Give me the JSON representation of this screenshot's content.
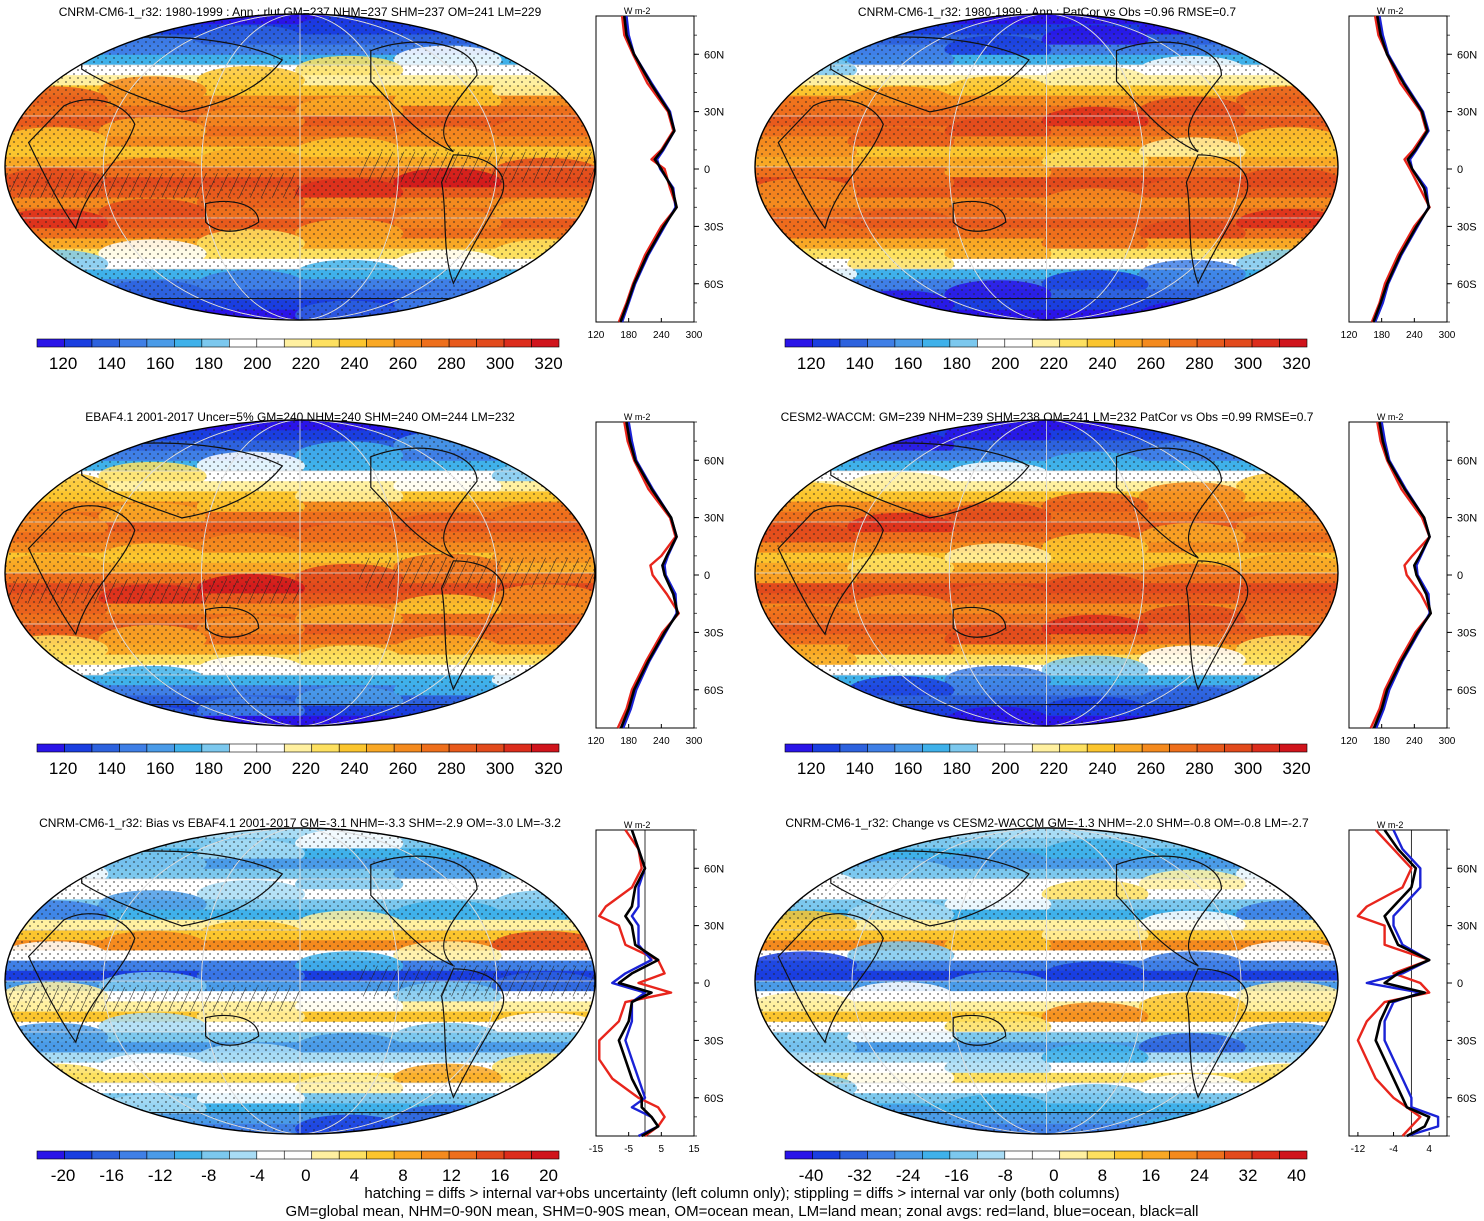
{
  "panels": [
    {
      "title": "CNRM-CM6-1_r32: 1980-1999 : Ann : rlut GM=237 NHM=237 SHM=237 OM=241 LM=229",
      "style": "abs",
      "hatched": true,
      "colorbar_labels": [
        "120",
        "140",
        "160",
        "180",
        "200",
        "220",
        "240",
        "260",
        "280",
        "300",
        "320"
      ],
      "profile_xticks": [
        "120",
        "180",
        "240",
        "300"
      ]
    },
    {
      "title": "CNRM-CM6-1_r32: 1980-1999 : Ann : PatCor vs Obs =0.96 RMSE=0.7",
      "style": "abs",
      "hatched": false,
      "colorbar_labels": [
        "120",
        "140",
        "160",
        "180",
        "200",
        "220",
        "240",
        "260",
        "280",
        "300",
        "320"
      ],
      "profile_xticks": [
        "120",
        "180",
        "240",
        "300"
      ]
    },
    {
      "title": "EBAF4.1 2001-2017 Uncer=5% GM=240 NHM=240 SHM=240 OM=244 LM=232",
      "style": "abs",
      "hatched": true,
      "colorbar_labels": [
        "120",
        "140",
        "160",
        "180",
        "200",
        "220",
        "240",
        "260",
        "280",
        "300",
        "320"
      ],
      "profile_xticks": [
        "120",
        "180",
        "240",
        "300"
      ]
    },
    {
      "title": "CESM2-WACCM: GM=239 NHM=239 SHM=238 OM=241 LM=232 PatCor vs Obs =0.99 RMSE=0.7",
      "style": "abs",
      "hatched": false,
      "colorbar_labels": [
        "120",
        "140",
        "160",
        "180",
        "200",
        "220",
        "240",
        "260",
        "280",
        "300",
        "320"
      ],
      "profile_xticks": [
        "120",
        "180",
        "240",
        "300"
      ]
    },
    {
      "title": "CNRM-CM6-1_r32: Bias vs EBAF4.1 2001-2017 GM=-3.1 NHM=-3.3 SHM=-2.9 OM=-3.0 LM=-3.2",
      "style": "diff",
      "hatched": true,
      "colorbar_labels": [
        "-20",
        "-16",
        "-12",
        "-8",
        "-4",
        "0",
        "4",
        "8",
        "12",
        "16",
        "20"
      ],
      "profile_xticks": [
        "-15",
        "-5",
        "5",
        "15"
      ]
    },
    {
      "title": "CNRM-CM6-1_r32: Change vs CESM2-WACCM GM=-1.3 NHM=-2.0 SHM=-0.8 OM=-0.8 LM=-2.7",
      "style": "diff",
      "hatched": false,
      "colorbar_labels": [
        "-40",
        "-32",
        "-24",
        "-16",
        "-8",
        "0",
        "8",
        "16",
        "24",
        "32",
        "40"
      ],
      "profile_xticks": [
        "-12",
        "-4",
        "4"
      ]
    }
  ],
  "profile_units": "W m-2",
  "lat_ticks": [
    "60N",
    "30N",
    "0",
    "30S",
    "60S"
  ],
  "colors": {
    "land": "#e8251c",
    "ocean": "#1a22d6",
    "all": "#000000",
    "abs_scale": [
      "#2a14e8",
      "#1a3ee0",
      "#2d62de",
      "#3f7fe6",
      "#4a9be8",
      "#3fb1ea",
      "#7cc8ee",
      "#ffffff",
      "#ffffff",
      "#fff0a0",
      "#fde060",
      "#fbc52e",
      "#f9a825",
      "#f48a1e",
      "#ee6f1c",
      "#e85a1c",
      "#e24a1c",
      "#dc2d1c",
      "#d0141c"
    ],
    "diff_scale": [
      "#2a14e8",
      "#1a3ee0",
      "#2d62de",
      "#3f7fe6",
      "#4a9be8",
      "#3fb1ea",
      "#7cc8ee",
      "#a8dcf5",
      "#ffffff",
      "#ffffff",
      "#fff0a0",
      "#fde060",
      "#fbc52e",
      "#f9a825",
      "#f48a1e",
      "#ee6f1c",
      "#e24a1c",
      "#dc2d1c",
      "#d0141c"
    ]
  },
  "chart_data": [
    {
      "type": "heatmap",
      "title": "CNRM-CM6-1_r32: 1980-1999 : Ann : rlut GM=237 NHM=237 SHM=237 OM=241 LM=229",
      "colorbar_range": [
        120,
        320
      ],
      "zonal_profile": {
        "lat": [
          80,
          70,
          60,
          45,
          30,
          20,
          10,
          5,
          0,
          -10,
          -20,
          -30,
          -45,
          -60,
          -70,
          -80
        ],
        "land": [
          168,
          172,
          188,
          214,
          252,
          262,
          240,
          222,
          246,
          256,
          268,
          240,
          210,
          188,
          176,
          162
        ],
        "ocean": [
          176,
          180,
          190,
          222,
          256,
          264,
          244,
          232,
          238,
          262,
          266,
          246,
          216,
          192,
          180,
          168
        ],
        "all": [
          172,
          176,
          190,
          220,
          254,
          264,
          242,
          228,
          240,
          260,
          268,
          244,
          214,
          190,
          178,
          165
        ]
      }
    },
    {
      "type": "heatmap",
      "title": "CNRM-CM6-1_r32: 1980-1999 : Ann : PatCor vs Obs =0.96 RMSE=0.7",
      "colorbar_range": [
        120,
        320
      ],
      "zonal_profile": {
        "lat": [
          80,
          70,
          60,
          45,
          30,
          20,
          10,
          5,
          0,
          -10,
          -20,
          -30,
          -45,
          -60,
          -70,
          -80
        ],
        "land": [
          168,
          174,
          190,
          214,
          252,
          262,
          238,
          222,
          232,
          250,
          268,
          240,
          210,
          186,
          176,
          162
        ],
        "ocean": [
          176,
          182,
          192,
          222,
          256,
          266,
          244,
          232,
          236,
          262,
          266,
          246,
          216,
          192,
          182,
          168
        ],
        "all": [
          172,
          178,
          190,
          220,
          254,
          264,
          242,
          228,
          236,
          258,
          267,
          244,
          214,
          190,
          178,
          165
        ]
      }
    },
    {
      "type": "heatmap",
      "title": "EBAF4.1 2001-2017 Uncer=5% GM=240 NHM=240 SHM=240 OM=244 LM=232",
      "colorbar_range": [
        120,
        320
      ],
      "zonal_profile": {
        "lat": [
          80,
          70,
          60,
          45,
          30,
          20,
          10,
          5,
          0,
          -10,
          -20,
          -30,
          -45,
          -60,
          -70,
          -80
        ],
        "land": [
          172,
          178,
          190,
          216,
          256,
          266,
          240,
          220,
          224,
          250,
          272,
          242,
          212,
          186,
          176,
          160
        ],
        "ocean": [
          180,
          186,
          194,
          224,
          258,
          268,
          252,
          246,
          248,
          266,
          268,
          248,
          218,
          194,
          184,
          170
        ],
        "all": [
          176,
          182,
          192,
          222,
          258,
          268,
          250,
          242,
          246,
          262,
          270,
          246,
          216,
          190,
          180,
          166
        ]
      }
    },
    {
      "type": "heatmap",
      "title": "CESM2-WACCM: GM=239 NHM=239 SHM=238 OM=241 LM=232 PatCor vs Obs =0.99 RMSE=0.7",
      "colorbar_range": [
        120,
        320
      ],
      "zonal_profile": {
        "lat": [
          80,
          70,
          60,
          45,
          30,
          20,
          10,
          5,
          0,
          -10,
          -20,
          -30,
          -45,
          -60,
          -70,
          -80
        ],
        "land": [
          172,
          178,
          190,
          216,
          254,
          268,
          236,
          222,
          226,
          252,
          270,
          242,
          212,
          186,
          176,
          160
        ],
        "ocean": [
          180,
          186,
          194,
          224,
          258,
          268,
          252,
          244,
          246,
          266,
          268,
          248,
          218,
          194,
          184,
          170
        ],
        "all": [
          176,
          182,
          192,
          222,
          258,
          268,
          250,
          240,
          244,
          262,
          270,
          246,
          216,
          190,
          180,
          166
        ]
      }
    },
    {
      "type": "heatmap",
      "title": "CNRM-CM6-1_r32: Bias vs EBAF4.1 2001-2017 GM=-3.1 NHM=-3.3 SHM=-2.9 OM=-3.0 LM=-3.2",
      "colorbar_range": [
        -20,
        20
      ],
      "zonal_profile": {
        "lat": [
          80,
          70,
          60,
          50,
          40,
          35,
          30,
          20,
          12,
          5,
          0,
          -5,
          -10,
          -20,
          -30,
          -40,
          -50,
          -60,
          -65,
          -70,
          -75,
          -80
        ],
        "land": [
          -6,
          -2,
          -1,
          -4,
          -12,
          -14,
          -8,
          -6,
          4,
          6,
          -2,
          8,
          -6,
          -8,
          -14,
          -14,
          -10,
          -2,
          4,
          6,
          4,
          0
        ],
        "ocean": [
          -4,
          -2,
          0,
          -2,
          -2,
          -4,
          -2,
          -2,
          2,
          -6,
          -10,
          0,
          -4,
          -4,
          -6,
          -4,
          -2,
          0,
          -4,
          2,
          4,
          -2
        ],
        "all": [
          -4,
          -2,
          0,
          -3,
          -4,
          -6,
          -4,
          -3,
          4,
          -4,
          -8,
          2,
          -4,
          -5,
          -8,
          -6,
          -4,
          -1,
          -1,
          2,
          4,
          -1
        ]
      }
    },
    {
      "type": "heatmap",
      "title": "CNRM-CM6-1_r32: Change vs CESM2-WACCM GM=-1.3 NHM=-2.0 SHM=-0.8 OM=-0.8 LM=-2.7",
      "colorbar_range": [
        -40,
        40
      ],
      "zonal_profile": {
        "lat": [
          80,
          70,
          60,
          50,
          40,
          35,
          30,
          20,
          12,
          5,
          0,
          -5,
          -10,
          -20,
          -30,
          -40,
          -50,
          -60,
          -65,
          -70,
          -75,
          -80
        ],
        "land": [
          -8,
          -4,
          0,
          -2,
          -10,
          -12,
          -6,
          -6,
          4,
          -4,
          2,
          4,
          -6,
          -10,
          -12,
          -10,
          -8,
          -4,
          -1,
          2,
          0,
          -2
        ],
        "ocean": [
          -4,
          -2,
          2,
          2,
          -2,
          -4,
          -4,
          -2,
          4,
          -2,
          -10,
          2,
          -4,
          -6,
          -6,
          -4,
          -2,
          0,
          0,
          6,
          6,
          -1
        ],
        "all": [
          -6,
          -3,
          1,
          0,
          -4,
          -6,
          -5,
          -3,
          4,
          -3,
          -6,
          3,
          -5,
          -7,
          -8,
          -6,
          -4,
          -2,
          -1,
          4,
          3,
          -1
        ]
      }
    }
  ],
  "footer": {
    "line1": "hatching = diffs > internal var+obs uncertainty (left column only); stippling = diffs > internal var only (both columns)",
    "line2": "GM=global mean, NHM=0-90N mean, SHM=0-90S mean, OM=ocean mean, LM=land mean; zonal avgs: red=land, blue=ocean, black=all"
  }
}
